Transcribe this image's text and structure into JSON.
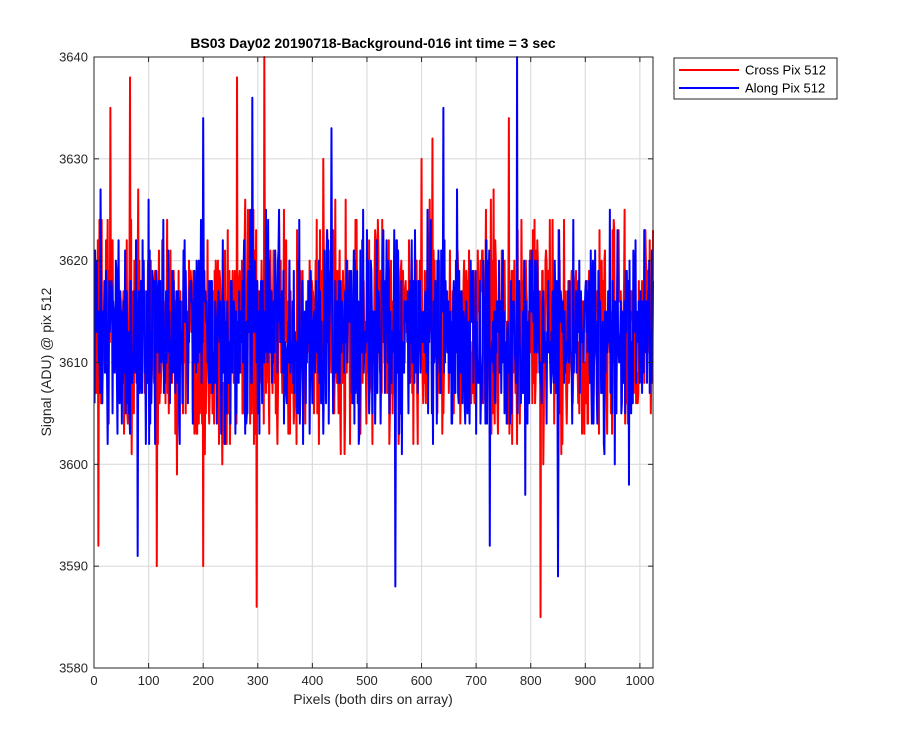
{
  "chart_data": {
    "type": "line",
    "title": "BS03 Day02 20190718-Background-016 int time = 3 sec",
    "xlabel": "Pixels (both dirs on array)",
    "ylabel": "Signal (ADU) @ pix 512",
    "xlim": [
      0,
      1024
    ],
    "ylim": [
      3580,
      3640
    ],
    "x_ticks": [
      0,
      100,
      200,
      300,
      400,
      500,
      600,
      700,
      800,
      900,
      1000
    ],
    "y_ticks": [
      3580,
      3590,
      3600,
      3610,
      3620,
      3630,
      3640
    ],
    "grid": true,
    "legend_position": "outside-top-right",
    "x_range": {
      "start": 1,
      "end": 1024,
      "step": 1
    },
    "series": [
      {
        "name": "Cross Pix 512",
        "color": "#ff0000",
        "mean": 3613,
        "spread": 5.5,
        "approx_min": 3585,
        "approx_max": 3640,
        "notable_points": [
          [
            8,
            3592
          ],
          [
            30,
            3635
          ],
          [
            66,
            3638
          ],
          [
            115,
            3590
          ],
          [
            200,
            3590
          ],
          [
            262,
            3638
          ],
          [
            298,
            3586
          ],
          [
            312,
            3640
          ],
          [
            420,
            3630
          ],
          [
            600,
            3630
          ],
          [
            620,
            3632
          ],
          [
            760,
            3634
          ],
          [
            818,
            3585
          ]
        ]
      },
      {
        "name": "Along Pix 512",
        "color": "#0000ff",
        "mean": 3613,
        "spread": 5.0,
        "approx_min": 3588,
        "approx_max": 3640,
        "notable_points": [
          [
            12,
            3627
          ],
          [
            80,
            3591
          ],
          [
            200,
            3634
          ],
          [
            290,
            3636
          ],
          [
            435,
            3633
          ],
          [
            552,
            3588
          ],
          [
            640,
            3635
          ],
          [
            725,
            3592
          ],
          [
            775,
            3640
          ],
          [
            790,
            3597
          ],
          [
            850,
            3589
          ],
          [
            980,
            3598
          ]
        ]
      }
    ]
  }
}
